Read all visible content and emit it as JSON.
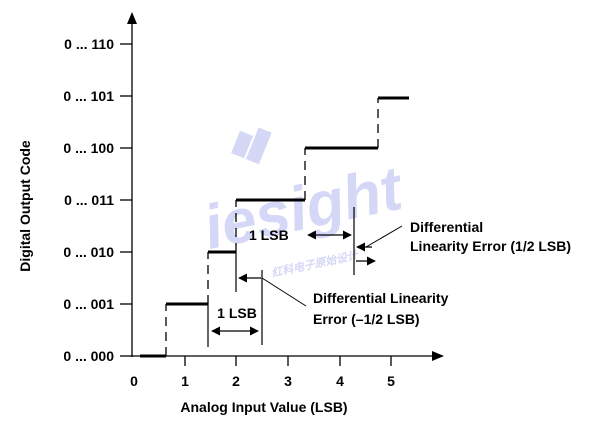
{
  "diagram": {
    "y_axis": {
      "title": "Digital Output Code",
      "ticks": [
        "0 ... 000",
        "0 ... 001",
        "0 ... 010",
        "0 ... 011",
        "0 ... 100",
        "0 ... 101",
        "0 ... 110"
      ]
    },
    "x_axis": {
      "title": "Analog Input Value (LSB)",
      "ticks": [
        "0",
        "1",
        "2",
        "3",
        "4",
        "5"
      ]
    },
    "staircase_codes": [
      0,
      1,
      2,
      3,
      4,
      5
    ],
    "annotations": {
      "lsb_lower": "1 LSB",
      "lsb_upper": "1 LSB",
      "dnl_negative_line1": "Differential Linearity",
      "dnl_negative_line2": "Error (–1/2 LSB)",
      "dnl_positive_line1": "Differential",
      "dnl_positive_line2": "Linearity Error (1/2 LSB)"
    },
    "watermark": {
      "text": "iesight",
      "subtext": "红科电子原始设计"
    },
    "colors": {
      "ink": "#000000",
      "watermark": "#b9bdf0"
    }
  }
}
